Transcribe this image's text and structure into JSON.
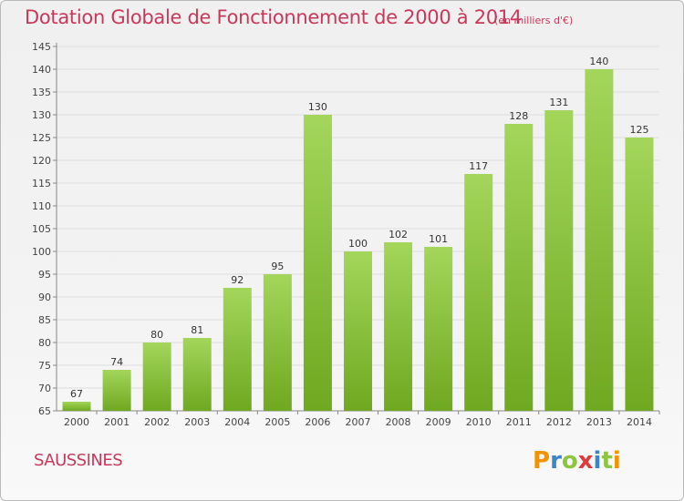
{
  "header": {
    "title": "Dotation Globale de Fonctionnement de 2000 à 2014",
    "unit": "(en milliers d'€)"
  },
  "footer": {
    "commune": "SAUSSINES",
    "logo_text": "Proxiti"
  },
  "colors": {
    "title": "#c8385a",
    "bar_light": "#a3d65a",
    "bar_dark": "#6fa821",
    "logo_orange": "#f39200",
    "logo_blue": "#3a86c8",
    "logo_green": "#8cc63f",
    "logo_red": "#e03b3b"
  },
  "chart_data": {
    "type": "bar",
    "title": "Dotation Globale de Fonctionnement de 2000 à 2014",
    "subtitle": "(en milliers d'€)",
    "xlabel": "",
    "ylabel": "",
    "ylim": [
      65,
      145
    ],
    "yticks": [
      65,
      70,
      75,
      80,
      85,
      90,
      95,
      100,
      105,
      110,
      115,
      120,
      125,
      130,
      135,
      140,
      145
    ],
    "grid": true,
    "categories": [
      "2000",
      "2001",
      "2002",
      "2003",
      "2004",
      "2005",
      "2006",
      "2007",
      "2008",
      "2009",
      "2010",
      "2011",
      "2012",
      "2013",
      "2014"
    ],
    "values": [
      67,
      74,
      80,
      81,
      92,
      95,
      130,
      100,
      102,
      101,
      117,
      128,
      131,
      140,
      125
    ]
  }
}
